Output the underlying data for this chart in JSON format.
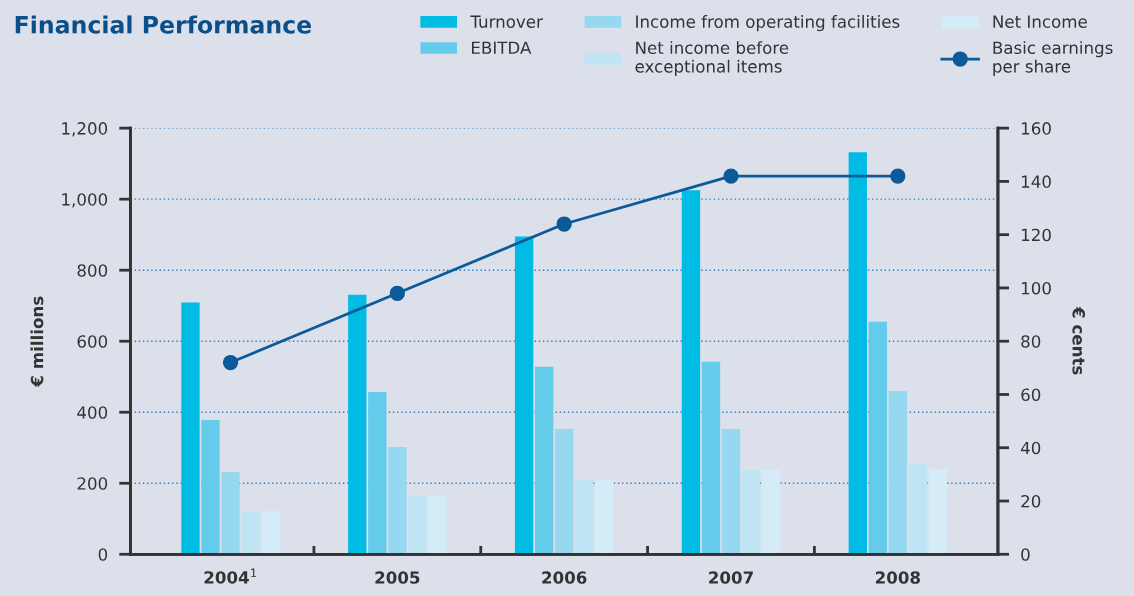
{
  "chart_data": {
    "type": "bar",
    "title": "Financial Performance",
    "categories": [
      "2004$^{1}$",
      "2005",
      "2006",
      "2007",
      "2008"
    ],
    "series": [
      {
        "name": "Turnover",
        "color": "#00bce4",
        "values": [
          709,
          731,
          895,
          1025,
          1132
        ]
      },
      {
        "name": "EBITDA",
        "color": "#64cbeb",
        "values": [
          378,
          457,
          528,
          542,
          655
        ]
      },
      {
        "name": "Income from operating facilities",
        "color": "#97d8f1",
        "values": [
          232,
          302,
          353,
          353,
          460
        ]
      },
      {
        "name": "Net income before\nexceptional items",
        "color": "#bfe4f4",
        "values": [
          121,
          164,
          209,
          237,
          254
        ]
      },
      {
        "name": "Net Income",
        "color": "#d4ecf7",
        "values": [
          121,
          164,
          209,
          237,
          240
        ]
      },
      {
        "name": "Basic earnings\nper share",
        "color": "#0b5a9a",
        "type": "line",
        "axis": "y2",
        "marker": "circle",
        "values": [
          72,
          98,
          124,
          142,
          142
        ]
      }
    ],
    "ylabel": "€ millions",
    "y2label": "€ cents",
    "ylim": [
      0,
      1200
    ],
    "yticks": [
      0,
      {
        "value": 200,
        "label": "200"
      },
      {
        "value": 400,
        "label": "400"
      },
      {
        "value": 600,
        "label": "600"
      },
      {
        "value": 800,
        "label": "800"
      },
      {
        "value": 1000,
        "label": "1,000"
      },
      {
        "value": 1200,
        "label": "1,200"
      }
    ],
    "y2lim": [
      0,
      160
    ],
    "y2ticks": [
      0,
      20,
      40,
      60,
      80,
      100,
      120,
      140,
      160
    ],
    "grid": "y",
    "legend": "top right"
  }
}
